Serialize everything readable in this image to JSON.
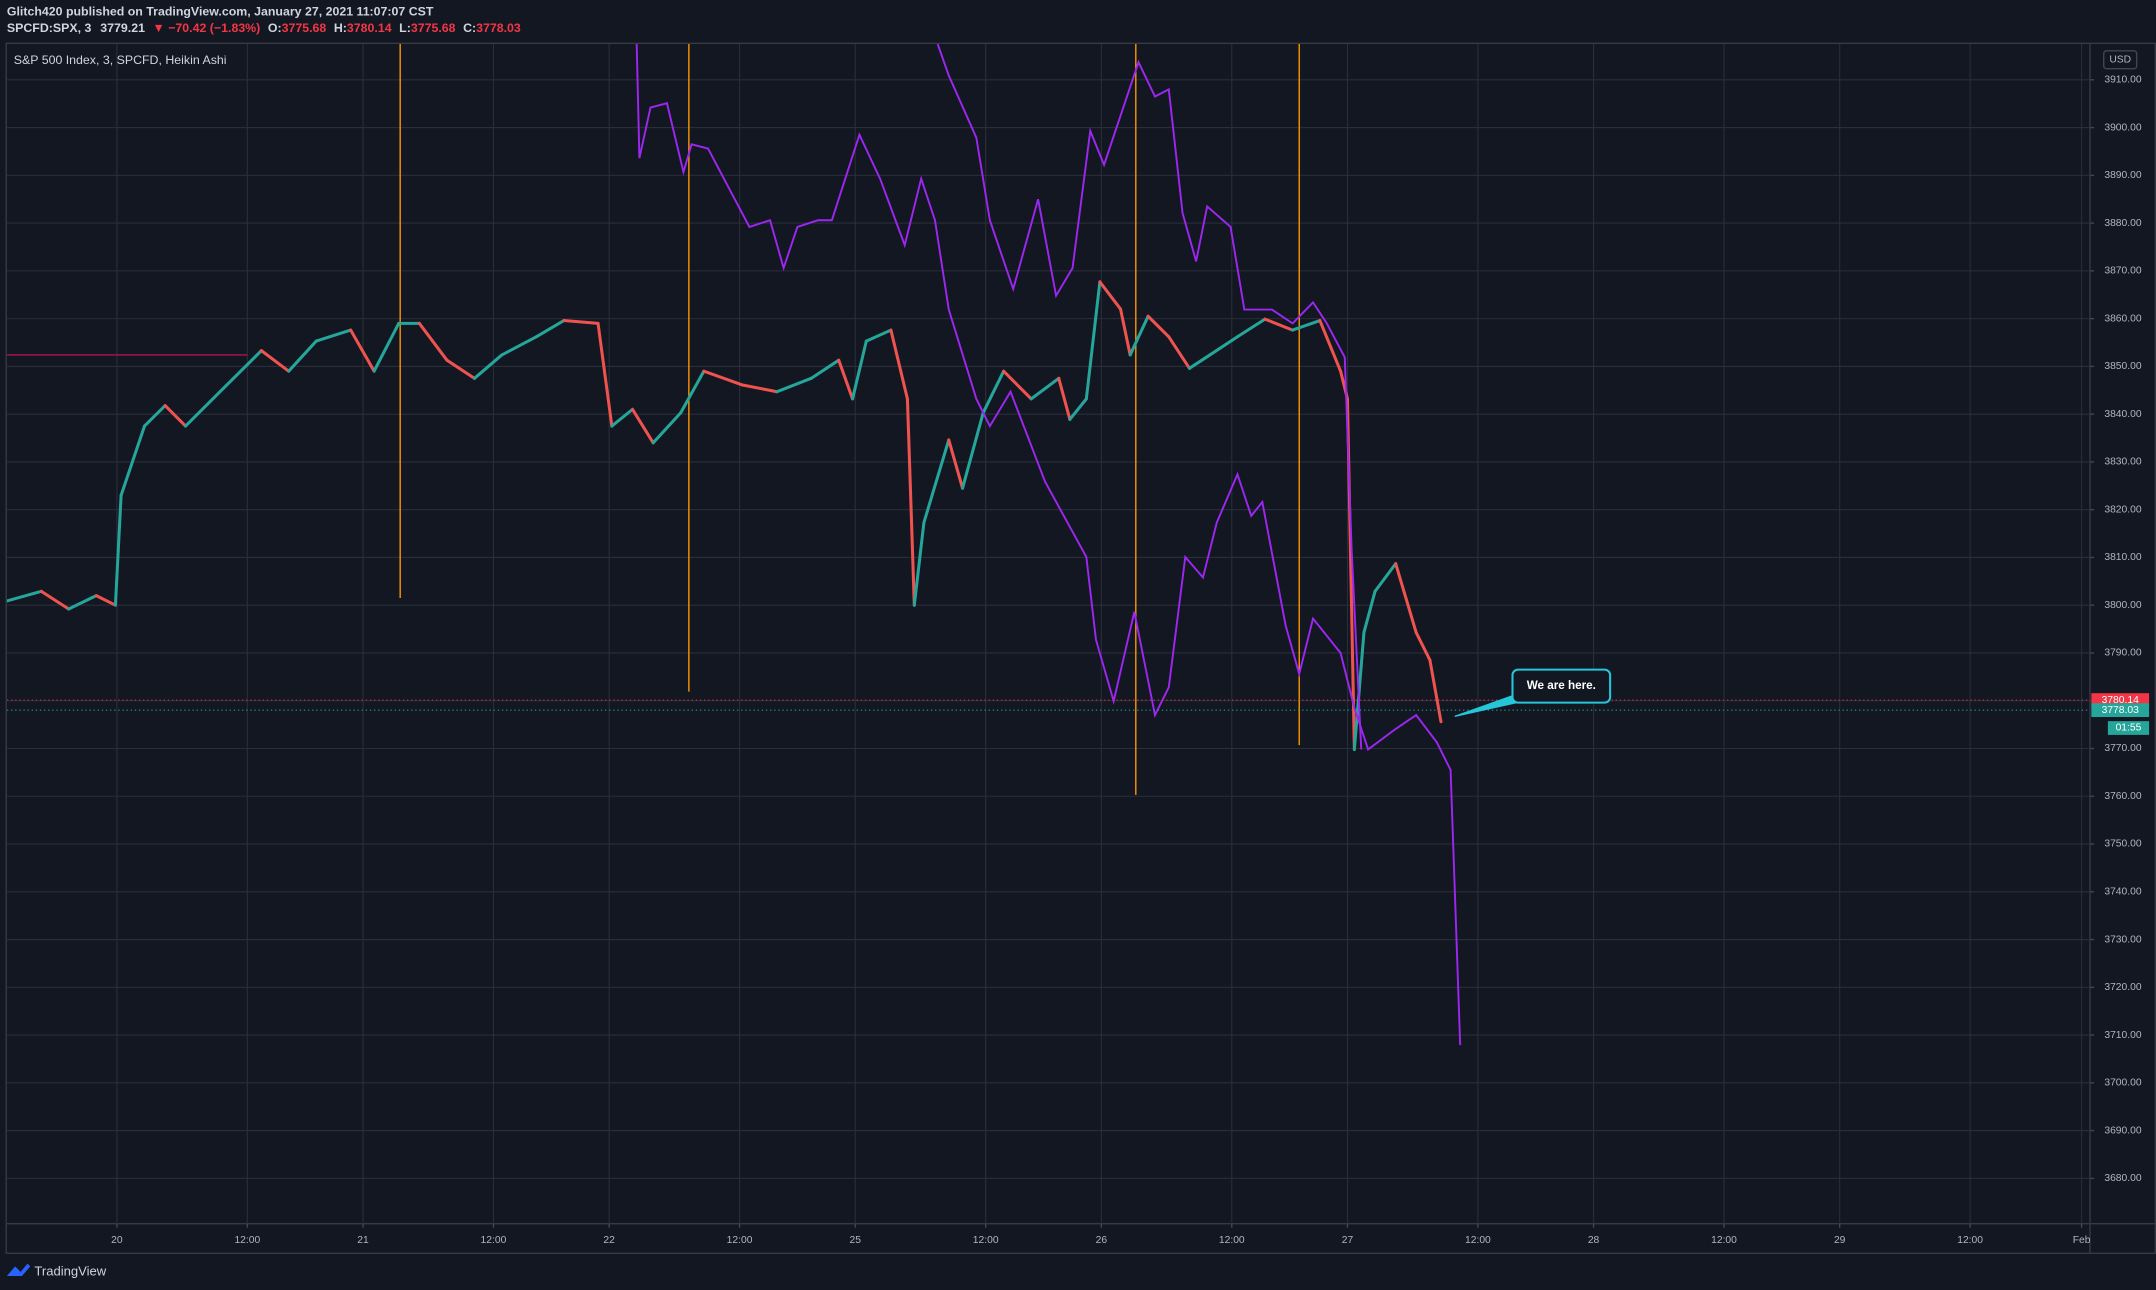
{
  "header": {
    "publisher": "Glitch420 published on TradingView.com, January 27, 2021 11:07:07 CST",
    "symbol": "SPCFD:SPX, 3",
    "last": "3779.21",
    "change": "▼ −70.42 (−1.83%)",
    "ohlc": [
      {
        "label": "O:",
        "value": "3775.68"
      },
      {
        "label": "H:",
        "value": "3780.14"
      },
      {
        "label": "L:",
        "value": "3775.68"
      },
      {
        "label": "C:",
        "value": "3778.03"
      }
    ]
  },
  "footer": {
    "brand": "TradingView"
  },
  "chart_data": {
    "type": "line",
    "title": "S&P 500 Index, 3, SPCFD, Heikin Ashi",
    "currency": "USD",
    "grid": true,
    "xlim": [
      -0.447,
      8.017
    ],
    "ylim": [
      3670.5,
      3917.5
    ],
    "xticks": [
      {
        "value": 0,
        "label": "20"
      },
      {
        "value": 0.53,
        "label": "12:00"
      },
      {
        "value": 1,
        "label": "21"
      },
      {
        "value": 1.53,
        "label": "12:00"
      },
      {
        "value": 2,
        "label": "22"
      },
      {
        "value": 2.53,
        "label": "12:00"
      },
      {
        "value": 3,
        "label": "25"
      },
      {
        "value": 3.53,
        "label": "12:00"
      },
      {
        "value": 4,
        "label": "26"
      },
      {
        "value": 4.53,
        "label": "12:00"
      },
      {
        "value": 5,
        "label": "27"
      },
      {
        "value": 5.53,
        "label": "12:00"
      },
      {
        "value": 6,
        "label": "28"
      },
      {
        "value": 6.53,
        "label": "12:00"
      },
      {
        "value": 7,
        "label": "29"
      },
      {
        "value": 7.53,
        "label": "12:00"
      },
      {
        "value": 7.983,
        "label": "Feb"
      }
    ],
    "yticks": [
      {
        "value": 3680,
        "label": "3680.00"
      },
      {
        "value": 3690,
        "label": "3690.00"
      },
      {
        "value": 3700,
        "label": "3700.00"
      },
      {
        "value": 3710,
        "label": "3710.00"
      },
      {
        "value": 3720,
        "label": "3720.00"
      },
      {
        "value": 3730,
        "label": "3730.00"
      },
      {
        "value": 3740,
        "label": "3740.00"
      },
      {
        "value": 3750,
        "label": "3750.00"
      },
      {
        "value": 3760,
        "label": "3760.00"
      },
      {
        "value": 3770,
        "label": "3770.00"
      },
      {
        "value": 3780,
        "label": "3780.00"
      },
      {
        "value": 3790,
        "label": "3790.00"
      },
      {
        "value": 3800,
        "label": "3800.00"
      },
      {
        "value": 3810,
        "label": "3810.00"
      },
      {
        "value": 3820,
        "label": "3820.00"
      },
      {
        "value": 3830,
        "label": "3830.00"
      },
      {
        "value": 3840,
        "label": "3840.00"
      },
      {
        "value": 3850,
        "label": "3850.00"
      },
      {
        "value": 3860,
        "label": "3860.00"
      },
      {
        "value": 3870,
        "label": "3870.00"
      },
      {
        "value": 3880,
        "label": "3880.00"
      },
      {
        "value": 3890,
        "label": "3890.00"
      },
      {
        "value": 3900,
        "label": "3900.00"
      },
      {
        "value": 3910,
        "label": "3910.00"
      }
    ],
    "series": [
      {
        "up_color": "#26a69a",
        "down_color": "#ef5350",
        "x": [
          -0.447,
          -0.307,
          -0.196,
          -0.084,
          -0.006,
          0.017,
          0.112,
          0.196,
          0.279,
          0.419,
          0.587,
          0.698,
          0.81,
          0.95,
          1.045,
          1.145,
          1.229,
          1.341,
          1.453,
          1.564,
          1.704,
          1.816,
          1.955,
          2.011,
          2.095,
          2.179,
          2.291,
          2.385,
          2.542,
          2.682,
          2.821,
          2.933,
          2.989,
          3.045,
          3.145,
          3.212,
          3.24,
          3.279,
          3.38,
          3.436,
          3.52,
          3.603,
          3.715,
          3.827,
          3.872,
          3.939,
          3.994,
          4.078,
          4.117,
          4.19,
          4.274,
          4.358,
          4.441,
          4.553,
          4.665,
          4.777,
          4.888,
          4.972,
          5.0,
          5.028,
          5.067,
          5.112,
          5.196,
          5.279,
          5.335,
          5.38
        ],
        "values": [
          3800.9,
          3802.9,
          3799.2,
          3802,
          3800,
          3823,
          3837.5,
          3841.8,
          3837.5,
          3844.7,
          3853.3,
          3849,
          3855.3,
          3857.6,
          3849,
          3859,
          3859,
          3851.3,
          3847.5,
          3852.4,
          3856.2,
          3859.6,
          3859,
          3837.5,
          3841,
          3834,
          3840.3,
          3849,
          3846.1,
          3844.7,
          3847.5,
          3851.3,
          3843.2,
          3855.3,
          3857.6,
          3843.2,
          3800,
          3817.3,
          3834.6,
          3824.5,
          3840.3,
          3849,
          3843.2,
          3847.5,
          3838.9,
          3843.2,
          3867.7,
          3862,
          3852.4,
          3860.5,
          3856.2,
          3849.6,
          3852.4,
          3856.2,
          3859.9,
          3857.6,
          3859.6,
          3849,
          3843.2,
          3769.8,
          3794.3,
          3802.9,
          3808.7,
          3794.3,
          3788.5,
          3775.6
        ]
      },
      {
        "color": "#9c27f0",
        "x": [
          2.112,
          2.123,
          2.168,
          2.235,
          2.302,
          2.335,
          2.402,
          2.57,
          2.654,
          2.709,
          2.765,
          2.849,
          2.905,
          3.017,
          3.101,
          3.201,
          3.268,
          3.324,
          3.38,
          3.492,
          3.547,
          3.631,
          3.771,
          3.939,
          3.978,
          4.05,
          4.134,
          4.218,
          4.274,
          4.341,
          4.413,
          4.469,
          4.553,
          4.609,
          4.654,
          4.749,
          4.804,
          4.86,
          4.972,
          5.028,
          5.084,
          5.196,
          5.279,
          5.363,
          5.419,
          5.458
        ],
        "values": [
          3917.5,
          3893.6,
          3904.2,
          3905.1,
          3890.7,
          3896.5,
          3895.6,
          3879.2,
          3880.6,
          3870.6,
          3879.2,
          3880.6,
          3880.6,
          3898.5,
          3889.3,
          3875.4,
          3889.3,
          3880.6,
          3861.9,
          3843.2,
          3837.5,
          3844.7,
          3825.9,
          3810.1,
          3792.8,
          3779.9,
          3798.6,
          3777.0,
          3782.8,
          3810.1,
          3805.8,
          3817.3,
          3827.4,
          3818.7,
          3821.6,
          3795.7,
          3785.6,
          3797.2,
          3790.0,
          3778.5,
          3769.8,
          3774.1,
          3777.0,
          3771.3,
          3765.5,
          3707.9
        ]
      },
      {
        "color": "#9c27f0",
        "x": [
          3.335,
          3.38,
          3.492,
          3.547,
          3.642,
          3.743,
          3.816,
          3.883,
          3.955,
          4.011,
          4.151,
          4.218,
          4.274,
          4.33,
          4.385,
          4.43,
          4.525,
          4.581,
          4.693,
          4.777,
          4.86,
          4.916,
          4.989,
          5.017,
          5.056
        ],
        "values": [
          3917.5,
          3910.9,
          3897.9,
          3880.6,
          3866.2,
          3885.0,
          3864.8,
          3870.6,
          3899.3,
          3892.2,
          3913.7,
          3906.5,
          3908.0,
          3882.1,
          3872.0,
          3883.5,
          3879.2,
          3861.9,
          3861.9,
          3859.0,
          3863.4,
          3859.0,
          3851.9,
          3811.6,
          3769.8
        ]
      }
    ],
    "vlines": {
      "color": "#ff9800",
      "x": [
        1.151,
        2.324,
        4.14,
        4.804
      ],
      "bottom": [
        3801.5,
        3781.9,
        3760.3,
        3770.7
      ]
    },
    "hline": {
      "color": "#ad1457",
      "x": [
        -0.447,
        0.53
      ],
      "value": 3852.4
    },
    "price_tags": [
      {
        "value": 3780.14,
        "color": "#f23645"
      },
      {
        "value": 3778.03,
        "color": "#26a69a"
      }
    ],
    "countdown": "01:55",
    "annotation": "We are here."
  }
}
